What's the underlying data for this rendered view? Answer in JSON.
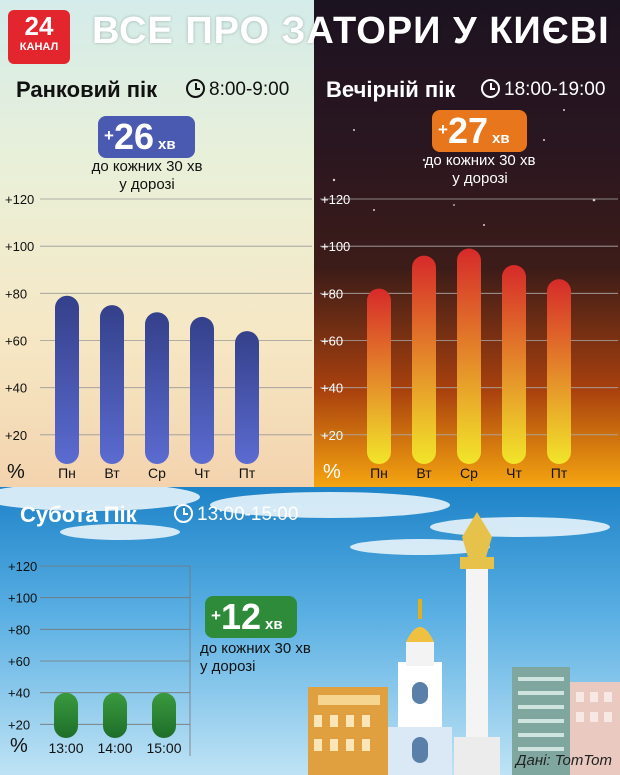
{
  "header": {
    "logo_number": "24",
    "logo_text": "КАНАЛ",
    "title": "ВСЕ ПРО ЗАТОРИ У КИЄВІ"
  },
  "morning": {
    "label": "Ранковий пік",
    "time": "8:00-9:00",
    "badge_plus": "+",
    "badge_value": "26",
    "badge_unit": "хв",
    "note_line1": "до кожних 30 хв",
    "note_line2": "у дорозі"
  },
  "evening": {
    "label": "Вечірній пік",
    "time": "18:00-19:00",
    "badge_plus": "+",
    "badge_value": "27",
    "badge_unit": "хв",
    "note_line1": "до кожних 30 хв",
    "note_line2": "у дорозі"
  },
  "saturday": {
    "label": "Субота Пік",
    "time": "13:00-15:00",
    "badge_plus": "+",
    "badge_value": "12",
    "badge_unit": "хв",
    "note_line1": "до кожних 30 хв",
    "note_line2": "у дорозі"
  },
  "source": "Дані: TomTom",
  "colors": {
    "morning_bar": "#3f4fa0",
    "evening_bar_top": "#d42a2a",
    "evening_bar_bottom": "#f2e32a",
    "saturday_bar": "#2e8b3a",
    "morning_badge": "#4a5ab0",
    "evening_badge": "#e8761c",
    "saturday_badge": "#2e8b3a"
  },
  "chart_data": [
    {
      "type": "bar",
      "title": "Ранковий пік",
      "categories": [
        "Пн",
        "Вт",
        "Ср",
        "Чт",
        "Пт"
      ],
      "values": [
        79,
        75,
        72,
        70,
        64
      ],
      "ylim": [
        0,
        120
      ],
      "yticks": [
        "+20",
        "+40",
        "+60",
        "+80",
        "+100",
        "+120"
      ],
      "ylabel": "%",
      "grid": true
    },
    {
      "type": "bar",
      "title": "Вечірній пік",
      "categories": [
        "Пн",
        "Вт",
        "Ср",
        "Чт",
        "Пт"
      ],
      "values": [
        82,
        96,
        99,
        92,
        86
      ],
      "ylim": [
        0,
        120
      ],
      "yticks": [
        "+20",
        "+40",
        "+60",
        "+80",
        "+100",
        "+120"
      ],
      "ylabel": "%",
      "grid": true
    },
    {
      "type": "bar",
      "title": "Субота Пік",
      "categories": [
        "13:00",
        "14:00",
        "15:00"
      ],
      "values": [
        40,
        40,
        40
      ],
      "ylim": [
        0,
        120
      ],
      "yticks": [
        "+20",
        "+40",
        "+60",
        "+80",
        "+100",
        "+120"
      ],
      "ylabel": "%",
      "grid": true
    }
  ]
}
